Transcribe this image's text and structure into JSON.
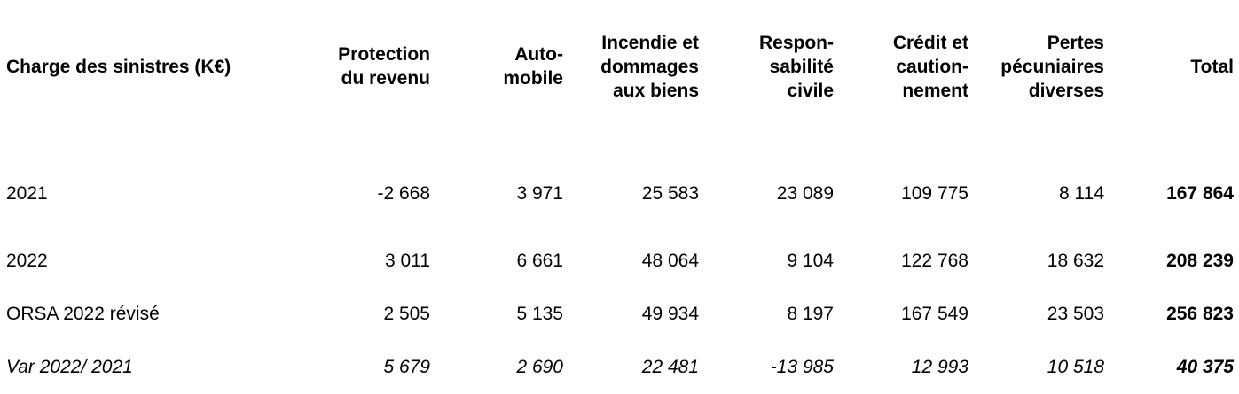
{
  "table": {
    "header": {
      "label": "Charge des sinistres (K€)",
      "columns": [
        [
          "Protection",
          "du revenu"
        ],
        [
          "Auto-",
          "mobile"
        ],
        [
          "Incendie et",
          "dommages",
          "aux biens"
        ],
        [
          "Respon-",
          "sabilité",
          "civile"
        ],
        [
          "Crédit et",
          "caution-",
          "nement"
        ],
        [
          "Pertes",
          "pécuniaires",
          "diverses"
        ],
        [
          "Total"
        ]
      ]
    },
    "rows": [
      {
        "label": "2021",
        "values": [
          "-2 668",
          "3 971",
          "25 583",
          "23 089",
          "109 775",
          "8 114",
          "167 864"
        ]
      },
      {
        "label": "2022",
        "values": [
          "3 011",
          "6 661",
          "48 064",
          "9 104",
          "122 768",
          "18 632",
          "208 239"
        ]
      },
      {
        "label": "ORSA 2022 révisé",
        "values": [
          "2 505",
          "5 135",
          "49 934",
          "8 197",
          "167 549",
          "23 503",
          "256 823"
        ]
      },
      {
        "label": "Var 2022/ 2021",
        "values": [
          "5 679",
          "2 690",
          "22 481",
          "-13 985",
          "12 993",
          "10 518",
          "40 375"
        ]
      }
    ]
  }
}
